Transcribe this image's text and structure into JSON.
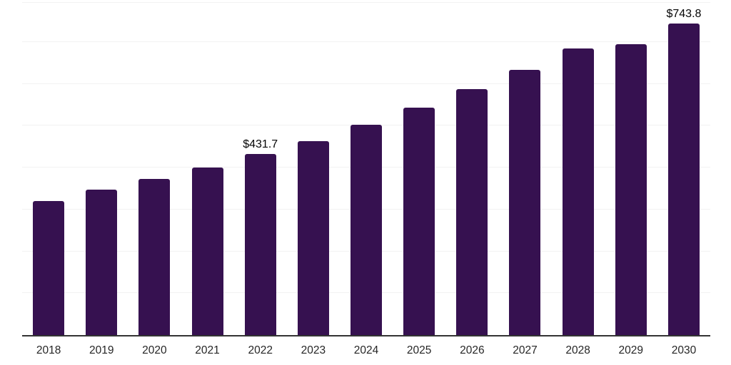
{
  "chart_data": {
    "type": "bar",
    "title": "",
    "xlabel": "",
    "ylabel": "",
    "categories": [
      "2018",
      "2019",
      "2020",
      "2021",
      "2022",
      "2023",
      "2024",
      "2025",
      "2026",
      "2027",
      "2028",
      "2029",
      "2030"
    ],
    "values": [
      320.0,
      346.5,
      373.0,
      400.5,
      431.7,
      463.5,
      502.0,
      543.0,
      588.0,
      633.0,
      684.5,
      694.5,
      743.8
    ],
    "labeled_points": [
      {
        "category": "2022",
        "label": "$431.7"
      },
      {
        "category": "2030",
        "label": "$743.8"
      }
    ],
    "ylim": [
      0,
      795
    ],
    "gridline_step": 100,
    "grid": "horizontal-only",
    "legend_position": "none",
    "colors": {
      "bar": "#361150",
      "axis_line": "#333333",
      "gridline": "#f2f2f2",
      "value_label": "#050505",
      "tick_label": "#262626",
      "background": "#ffffff"
    }
  }
}
